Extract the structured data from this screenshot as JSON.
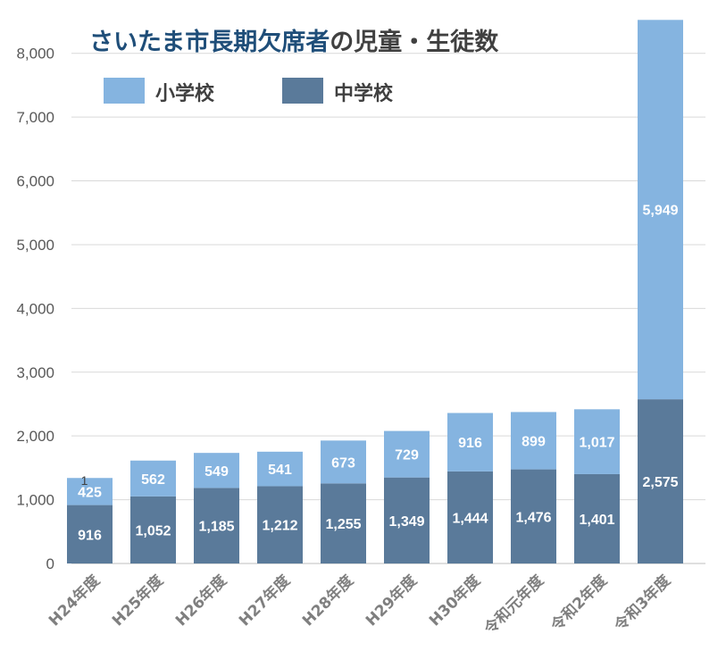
{
  "chart_data": {
    "type": "bar",
    "stacked": true,
    "title": "さいたま市長期欠席者の児童・生徒数",
    "title_highlight": "さいたま市長期欠席者",
    "title_rest": "の児童・生徒数",
    "categories": [
      "H24年度",
      "H25年度",
      "H26年度",
      "H27年度",
      "H28年度",
      "H29年度",
      "H30年度",
      "令和元年度",
      "令和2年度",
      "令和3年度"
    ],
    "series": [
      {
        "name": "中学校",
        "color": "#5a7a9a",
        "values": [
          916,
          1052,
          1185,
          1212,
          1255,
          1349,
          1444,
          1476,
          1401,
          2575
        ],
        "labels": [
          "916",
          "1,052",
          "1,185",
          "1,212",
          "1,255",
          "1,349",
          "1,444",
          "1,476",
          "1,401",
          "2,575"
        ]
      },
      {
        "name": "小学校",
        "color": "#85b4e0",
        "values": [
          425,
          562,
          549,
          541,
          673,
          729,
          916,
          899,
          1017,
          5949
        ],
        "labels": [
          "425",
          "562",
          "549",
          "541",
          "673",
          "729",
          "916",
          "899",
          "1,017",
          "5,949"
        ]
      }
    ],
    "extra_label": "1",
    "ylim": [
      0,
      8500
    ],
    "yticks": [
      0,
      1000,
      2000,
      3000,
      4000,
      5000,
      6000,
      7000,
      8000
    ],
    "ytick_labels": [
      "0",
      "1,000",
      "2,000",
      "3,000",
      "4,000",
      "5,000",
      "6,000",
      "7,000",
      "8,000"
    ],
    "legend_order": [
      "小学校",
      "中学校"
    ],
    "legend_position": "top-left",
    "grid": true,
    "title_color": "#1f4e79",
    "axis_text_color": "#595959"
  }
}
